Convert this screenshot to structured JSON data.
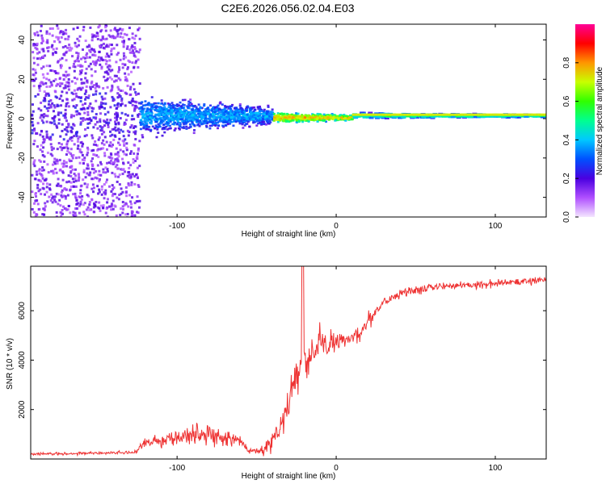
{
  "page": {
    "title": "C2E6.2026.056.02.04.E03"
  },
  "chart_data": [
    {
      "type": "heatmap",
      "title": "C2E6.2026.056.02.04.E03",
      "xlabel": "Height of straight line (km)",
      "ylabel": "Frequency (Hz)",
      "xlim": [
        -192,
        132
      ],
      "ylim": [
        -50,
        48
      ],
      "xticks": [
        -100,
        0,
        100
      ],
      "yticks": [
        -40,
        -20,
        0,
        20,
        40
      ],
      "colorbar": {
        "label": "Normalized spectral amplitude",
        "range": [
          0,
          1
        ],
        "ticks": [
          "0.0",
          "0.2",
          "0.4",
          "0.6",
          "0.8"
        ],
        "tick_values": [
          0,
          0.2,
          0.4,
          0.6,
          0.8
        ]
      },
      "line_center_frequency_hz": 2,
      "regions": [
        {
          "name": "noise",
          "x": [
            -192,
            -124
          ],
          "freq_range": [
            -50,
            48
          ],
          "amplitude": 0.08
        },
        {
          "name": "turbulent-core",
          "x": [
            -124,
            -40
          ],
          "freq_center": 2,
          "half_width_hz": [
            14,
            6
          ],
          "amplitude": 0.3
        },
        {
          "name": "focused",
          "x": [
            -40,
            10
          ],
          "freq_center": 1,
          "half_width_hz": [
            4,
            2
          ],
          "amplitude": 0.7
        },
        {
          "name": "steady-line",
          "x": [
            10,
            132
          ],
          "freq_center": 2,
          "half_width_hz": [
            2,
            1
          ],
          "amplitude": 0.45
        }
      ]
    },
    {
      "type": "line",
      "xlabel": "Height of straight line (km)",
      "ylabel": "SNR (10 * v/v)",
      "xlim": [
        -192,
        132
      ],
      "ylim": [
        0,
        7800
      ],
      "xticks": [
        -100,
        0,
        100
      ],
      "yticks": [
        2000,
        4000,
        6000
      ],
      "color": "#ee3333",
      "series": [
        {
          "name": "SNR",
          "x": [
            -192,
            -170,
            -150,
            -130,
            -125,
            -120,
            -110,
            -100,
            -90,
            -80,
            -70,
            -60,
            -55,
            -50,
            -45,
            -40,
            -35,
            -30,
            -25,
            -20,
            -15,
            -10,
            -5,
            0,
            5,
            10,
            15,
            20,
            25,
            30,
            40,
            50,
            60,
            70,
            80,
            90,
            100,
            110,
            120,
            132
          ],
          "values": [
            200,
            220,
            240,
            260,
            300,
            700,
            750,
            850,
            1000,
            950,
            900,
            700,
            350,
            320,
            450,
            700,
            1200,
            2400,
            3200,
            3700,
            4300,
            4700,
            4600,
            4700,
            4800,
            4900,
            5100,
            5600,
            6000,
            6400,
            6700,
            6850,
            6950,
            7000,
            7050,
            7050,
            7100,
            7150,
            7200,
            7250
          ],
          "noise_amplitude": [
            60,
            60,
            60,
            60,
            80,
            300,
            350,
            400,
            450,
            420,
            400,
            250,
            120,
            150,
            300,
            500,
            700,
            800,
            900,
            800,
            700,
            600,
            550,
            500,
            450,
            420,
            400,
            350,
            300,
            250,
            200,
            180,
            170,
            160,
            150,
            150,
            150,
            140,
            140,
            140
          ]
        }
      ],
      "spike": {
        "x": -21,
        "value": 7800
      }
    }
  ]
}
